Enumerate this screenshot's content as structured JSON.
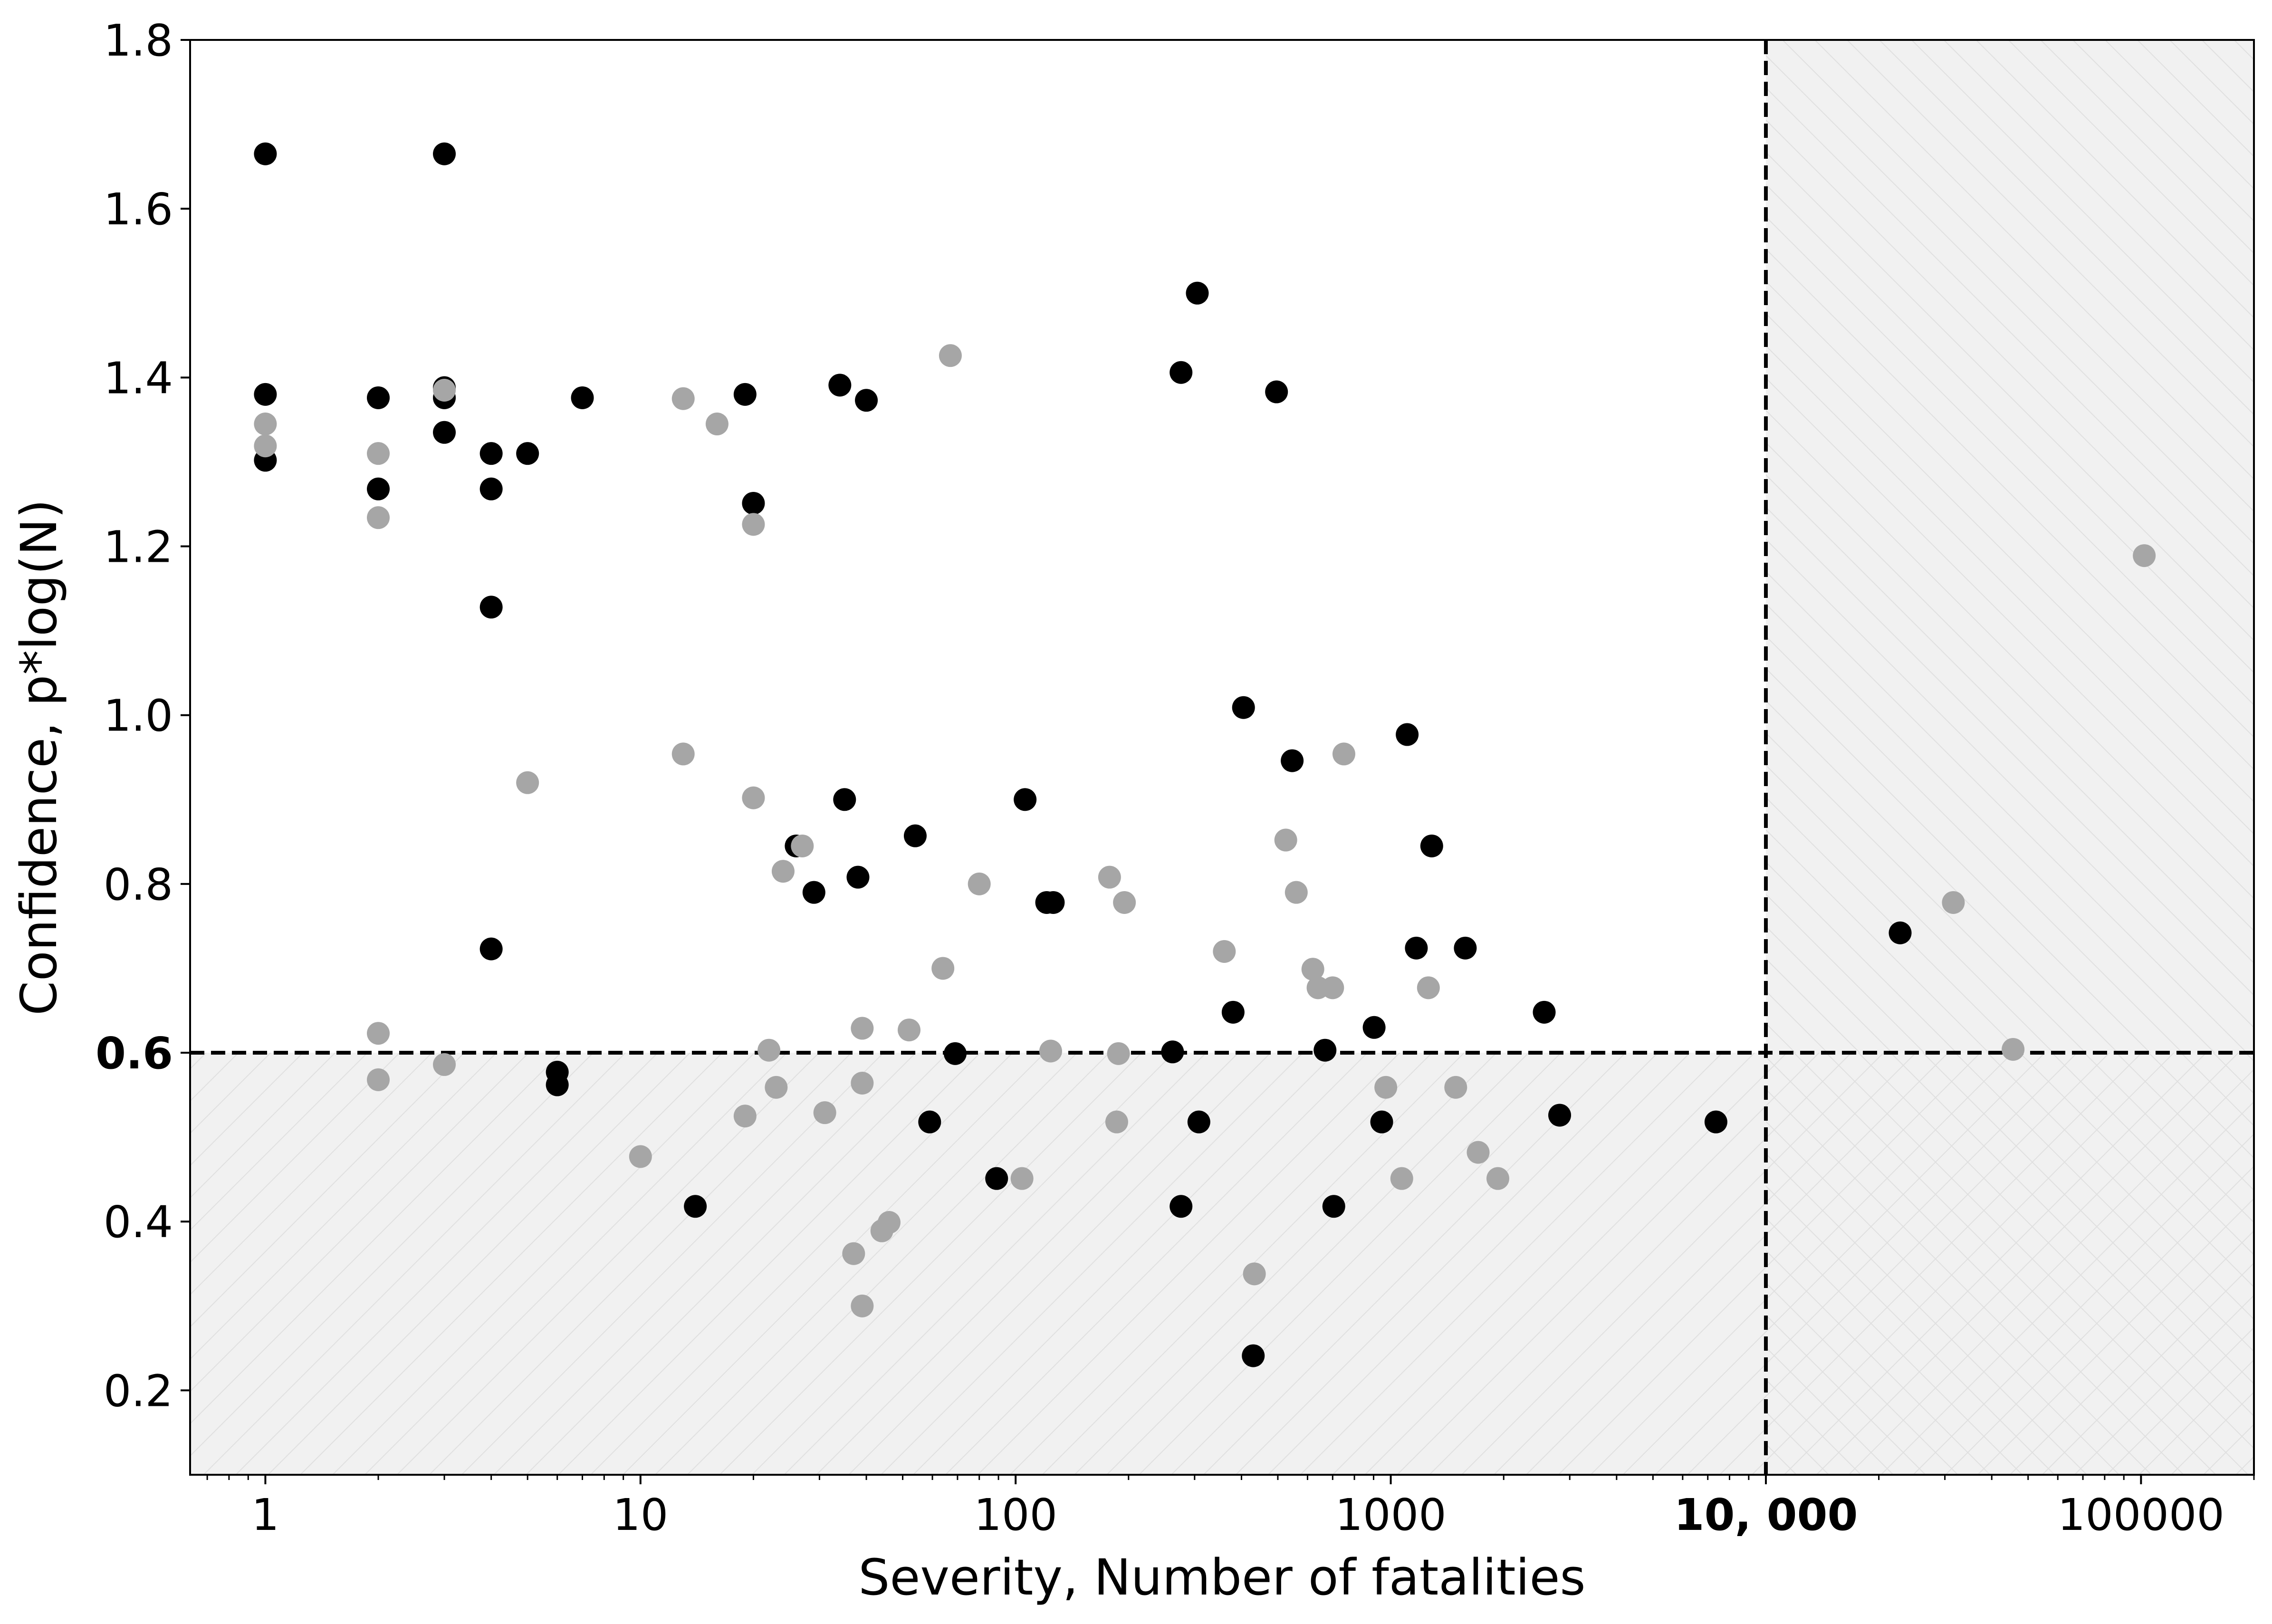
{
  "chart_data": {
    "type": "scatter",
    "title": "",
    "xlabel": "Severity, Number of fatalities",
    "ylabel": "Confidence, p*log(N)",
    "xscale": "log",
    "xlim": [
      0.63,
      200000
    ],
    "ylim": [
      0.1,
      1.8
    ],
    "grid": false,
    "legend": "none",
    "x_ticks": [
      {
        "value": 1,
        "label": "1",
        "emphasis": false
      },
      {
        "value": 10,
        "label": "10",
        "emphasis": false
      },
      {
        "value": 100,
        "label": "100",
        "emphasis": false
      },
      {
        "value": 1000,
        "label": "1000",
        "emphasis": false
      },
      {
        "value": 10000,
        "label": "10, 000",
        "emphasis": true
      },
      {
        "value": 100000,
        "label": "100000",
        "emphasis": false
      }
    ],
    "y_ticks": [
      {
        "value": 0.2,
        "label": "0.2",
        "emphasis": false
      },
      {
        "value": 0.4,
        "label": "0.4",
        "emphasis": false
      },
      {
        "value": 0.6,
        "label": "0.6",
        "emphasis": true
      },
      {
        "value": 0.8,
        "label": "0.8",
        "emphasis": false
      },
      {
        "value": 1.0,
        "label": "1.0",
        "emphasis": false
      },
      {
        "value": 1.2,
        "label": "1.2",
        "emphasis": false
      },
      {
        "value": 1.4,
        "label": "1.4",
        "emphasis": false
      },
      {
        "value": 1.6,
        "label": "1.6",
        "emphasis": false
      },
      {
        "value": 1.8,
        "label": "1.8",
        "emphasis": false
      }
    ],
    "thresholds": {
      "x": 10000,
      "y": 0.6
    },
    "shaded_regions": [
      {
        "name": "x-above-threshold",
        "x": [
          10000,
          200000
        ],
        "y": [
          0.1,
          1.8
        ],
        "fill": "#f1f1f1",
        "hatch": "backslash"
      },
      {
        "name": "y-below-threshold",
        "x": [
          0.63,
          10000
        ],
        "y": [
          0.1,
          0.6
        ],
        "fill": "#f1f1f1",
        "hatch": "slash"
      }
    ],
    "series": [
      {
        "color": "#000000",
        "points": [
          [
            1,
            1.665
          ],
          [
            1,
            1.38
          ],
          [
            1,
            1.302
          ],
          [
            2,
            1.376
          ],
          [
            2,
            1.268
          ],
          [
            3,
            1.665
          ],
          [
            3,
            1.388
          ],
          [
            3,
            1.376
          ],
          [
            3,
            1.335
          ],
          [
            4,
            1.31
          ],
          [
            4,
            1.268
          ],
          [
            4,
            1.128
          ],
          [
            4,
            0.723
          ],
          [
            5,
            1.31
          ],
          [
            6,
            0.577
          ],
          [
            6,
            0.562
          ],
          [
            7,
            1.376
          ],
          [
            14,
            0.418
          ],
          [
            19,
            1.38
          ],
          [
            20,
            1.251
          ],
          [
            26,
            0.845
          ],
          [
            29,
            0.79
          ],
          [
            34,
            1.391
          ],
          [
            35,
            0.9
          ],
          [
            38,
            0.808
          ],
          [
            40,
            1.373
          ],
          [
            54,
            0.857
          ],
          [
            59,
            0.518
          ],
          [
            69,
            0.599
          ],
          [
            89,
            0.451
          ],
          [
            106,
            0.9
          ],
          [
            121,
            0.778
          ],
          [
            126,
            0.778
          ],
          [
            262,
            0.601
          ],
          [
            276,
            1.406
          ],
          [
            276,
            0.418
          ],
          [
            305,
            1.5
          ],
          [
            308,
            0.518
          ],
          [
            380,
            0.648
          ],
          [
            405,
            1.009
          ],
          [
            430,
            0.241
          ],
          [
            496,
            1.383
          ],
          [
            546,
            0.946
          ],
          [
            668,
            0.603
          ],
          [
            705,
            0.418
          ],
          [
            903,
            0.63
          ],
          [
            946,
            0.518
          ],
          [
            1106,
            0.977
          ],
          [
            1170,
            0.724
          ],
          [
            1286,
            0.845
          ],
          [
            1580,
            0.724
          ],
          [
            2565,
            0.648
          ],
          [
            2820,
            0.526
          ],
          [
            7360,
            0.518
          ],
          [
            22800,
            0.742
          ]
        ]
      },
      {
        "color": "#a6a6a6",
        "points": [
          [
            1,
            1.345
          ],
          [
            1,
            1.319
          ],
          [
            2,
            1.31
          ],
          [
            2,
            1.234
          ],
          [
            2,
            0.623
          ],
          [
            2,
            0.568
          ],
          [
            3,
            1.385
          ],
          [
            3,
            0.586
          ],
          [
            5,
            0.92
          ],
          [
            10,
            0.477
          ],
          [
            13,
            1.375
          ],
          [
            13,
            0.954
          ],
          [
            16,
            1.345
          ],
          [
            19,
            0.525
          ],
          [
            20,
            1.226
          ],
          [
            20,
            0.902
          ],
          [
            22,
            0.603
          ],
          [
            23,
            0.559
          ],
          [
            24,
            0.815
          ],
          [
            27,
            0.845
          ],
          [
            31,
            0.529
          ],
          [
            37,
            0.362
          ],
          [
            39,
            0.3
          ],
          [
            39,
            0.629
          ],
          [
            39,
            0.564
          ],
          [
            44,
            0.389
          ],
          [
            46,
            0.399
          ],
          [
            52,
            0.627
          ],
          [
            64,
            0.7
          ],
          [
            67,
            1.426
          ],
          [
            80,
            0.8
          ],
          [
            104,
            0.451
          ],
          [
            124,
            0.602
          ],
          [
            178,
            0.808
          ],
          [
            186,
            0.518
          ],
          [
            188,
            0.599
          ],
          [
            195,
            0.778
          ],
          [
            360,
            0.72
          ],
          [
            433,
            0.338
          ],
          [
            525,
            0.852
          ],
          [
            560,
            0.79
          ],
          [
            620,
            0.699
          ],
          [
            640,
            0.677
          ],
          [
            700,
            0.677
          ],
          [
            750,
            0.954
          ],
          [
            970,
            0.559
          ],
          [
            1070,
            0.451
          ],
          [
            1260,
            0.677
          ],
          [
            1490,
            0.559
          ],
          [
            1710,
            0.482
          ],
          [
            1930,
            0.451
          ],
          [
            31600,
            0.778
          ],
          [
            45600,
            0.604
          ],
          [
            102000,
            1.189
          ]
        ]
      }
    ]
  }
}
